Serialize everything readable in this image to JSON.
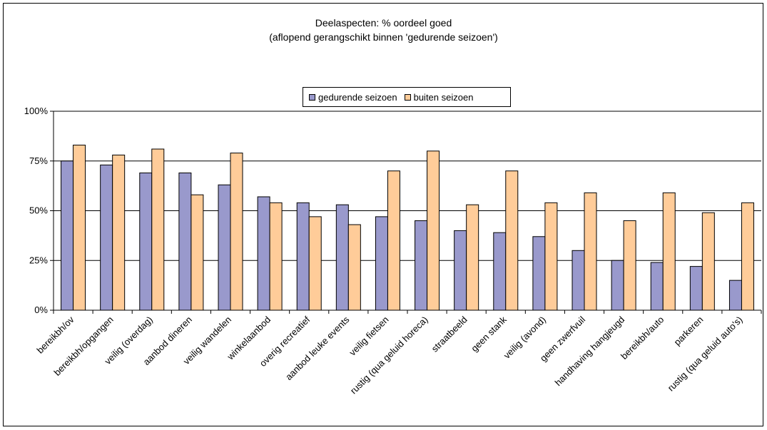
{
  "chart_data": {
    "type": "bar",
    "title": "Deelaspecten: % oordeel goed",
    "subtitle": "(aflopend gerangschikt binnen 'gedurende seizoen')",
    "categories": [
      "bereikbh/ov",
      "bereikbh/opgangen",
      "veilig (overdag)",
      "aanbod dineren",
      "veilig wandelen",
      "winkelaanbod",
      "overig recreatief",
      "aanbod leuke events",
      "veilig fietsen",
      "rustig (qua geluid horeca)",
      "straatbeeld",
      "geen stank",
      "veilig (avond)",
      "geen zwerfvuil",
      "handhaving hangjeugd",
      "bereikbh/auto",
      "parkeren",
      "rustig (qua geluid auto's)"
    ],
    "series": [
      {
        "name": "gedurende seizoen",
        "color": "#9999cc",
        "values": [
          75,
          73,
          69,
          69,
          63,
          57,
          54,
          53,
          47,
          45,
          40,
          39,
          37,
          30,
          25,
          24,
          22,
          15
        ]
      },
      {
        "name": "buiten seizoen",
        "color": "#ffcc99",
        "values": [
          83,
          78,
          81,
          58,
          79,
          54,
          47,
          43,
          70,
          80,
          53,
          70,
          54,
          59,
          45,
          59,
          49,
          54
        ]
      }
    ],
    "ylim": [
      0,
      100
    ],
    "yticks": [
      "0%",
      "25%",
      "50%",
      "75%",
      "100%"
    ],
    "grid": true,
    "legend_position": "top"
  }
}
